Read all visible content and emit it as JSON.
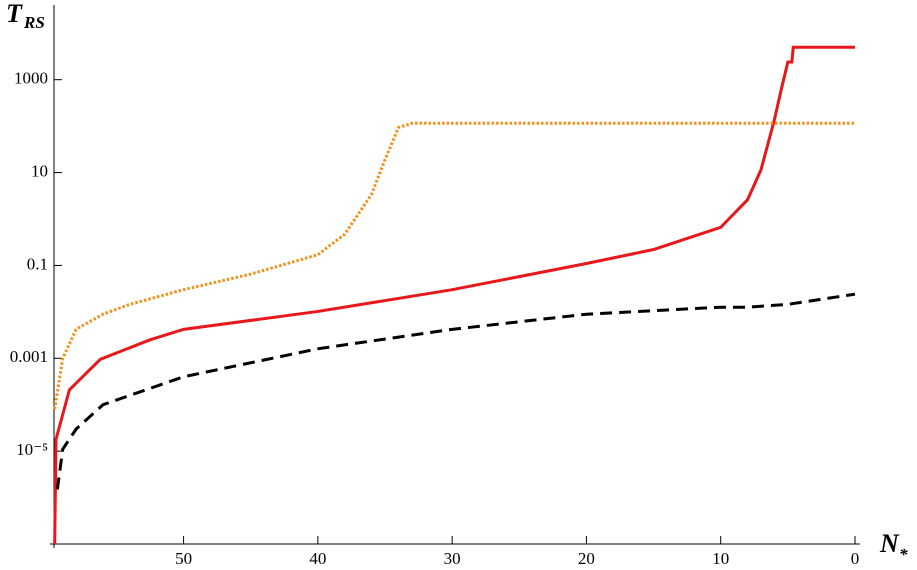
{
  "chart_data": {
    "type": "line",
    "y_label": "T",
    "y_label_sub": "RS",
    "x_label": "N",
    "x_label_sub": "*",
    "log_y": true,
    "xlim": [
      59.65,
      0
    ],
    "xticks": [
      50,
      40,
      30,
      20,
      10,
      0
    ],
    "ylim": [
      1e-07,
      35000
    ],
    "yticks": [
      1000,
      10,
      0.1,
      0.001,
      {
        "value": 1e-05,
        "label": "10⁻⁵"
      }
    ],
    "series": [
      {
        "color": "#e8171b",
        "style": "solid",
        "x": [
          59.6,
          59.5,
          58.5,
          56.2,
          52.5,
          50,
          40,
          30,
          20,
          15,
          10,
          8,
          7,
          6,
          5.5,
          5,
          4.7,
          4.6,
          0
        ],
        "values": [
          1e-07,
          1.8e-05,
          0.00021,
          0.00095,
          0.0025,
          0.0042,
          0.0102,
          0.03,
          0.11,
          0.22,
          0.66,
          2.6,
          11.5,
          138,
          600,
          2400,
          2400,
          5000,
          5000
        ]
      },
      {
        "color": "#f39019",
        "style": "dotted",
        "x": [
          59.6,
          59,
          58,
          56,
          54,
          50,
          45,
          40,
          38,
          36,
          35,
          34,
          33,
          0
        ],
        "values": [
          8e-05,
          0.001,
          0.0042,
          0.0089,
          0.0145,
          0.03,
          0.065,
          0.17,
          0.47,
          3.4,
          19,
          93,
          115,
          115
        ]
      },
      {
        "color": "#000000",
        "style": "dashed",
        "x": [
          59.4,
          59,
          58,
          56,
          50,
          40,
          30,
          20,
          10,
          8,
          5,
          0
        ],
        "values": [
          1.5e-06,
          1.1e-05,
          3e-05,
          0.0001,
          0.0004,
          0.0016,
          0.0042,
          0.0089,
          0.0126,
          0.0126,
          0.0145,
          0.024
        ]
      }
    ]
  }
}
